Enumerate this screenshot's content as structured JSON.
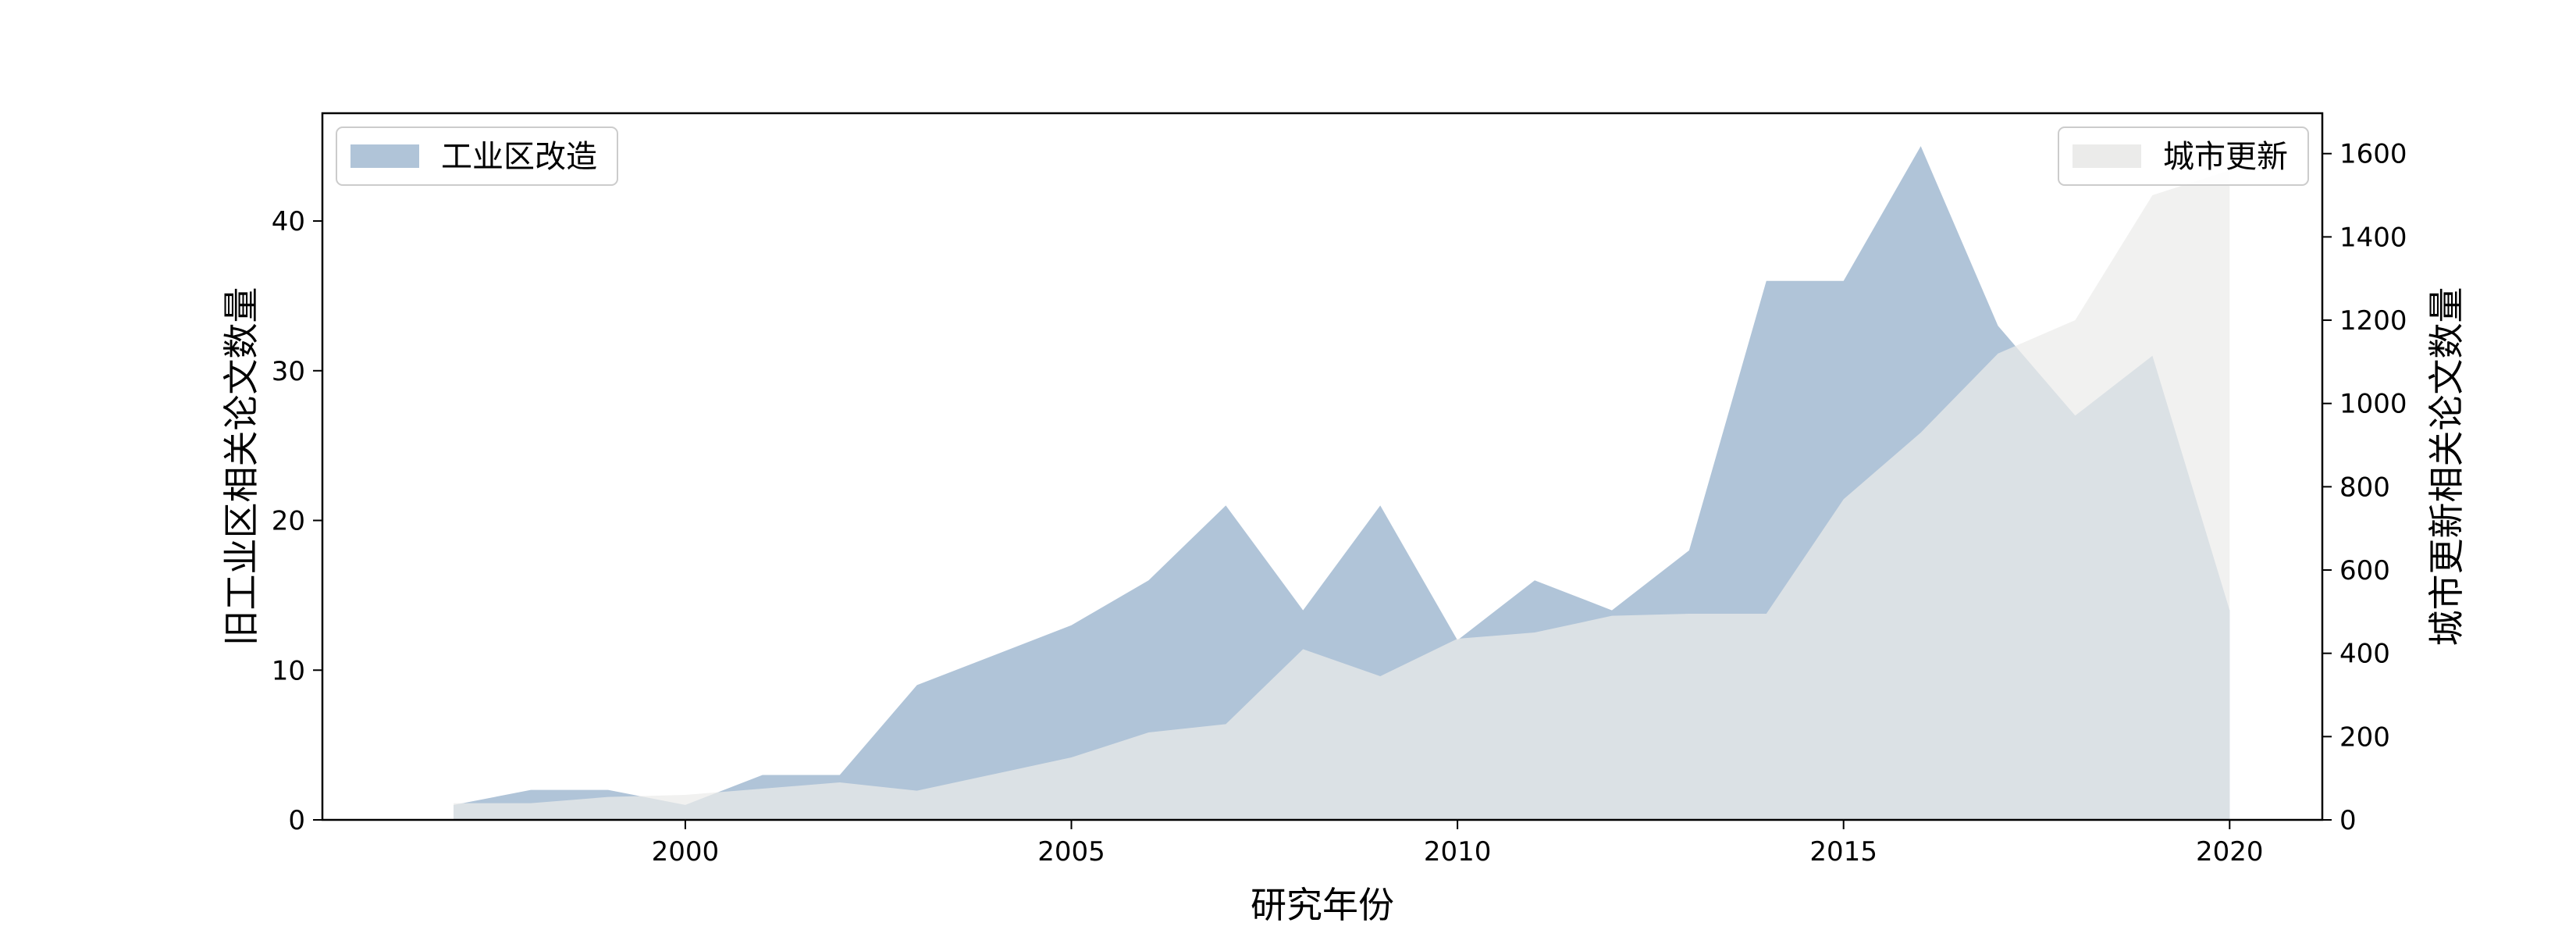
{
  "chart_data": {
    "type": "area",
    "x": [
      1997,
      1998,
      1999,
      2000,
      2001,
      2002,
      2003,
      2004,
      2005,
      2006,
      2007,
      2008,
      2009,
      2010,
      2011,
      2012,
      2013,
      2014,
      2015,
      2016,
      2017,
      2018,
      2019,
      2020
    ],
    "series": [
      {
        "name": "工业区改造",
        "axis": "left",
        "color": "#b0c4d8",
        "values": [
          1,
          2,
          2,
          1,
          3,
          3,
          9,
          11,
          13,
          16,
          21,
          14,
          21,
          12,
          16,
          14,
          18,
          36,
          36,
          45,
          33,
          27,
          31,
          14
        ]
      },
      {
        "name": "城市更新",
        "axis": "right",
        "color": "#ebebea",
        "values": [
          40,
          40,
          55,
          60,
          75,
          90,
          70,
          110,
          150,
          210,
          230,
          410,
          345,
          435,
          450,
          490,
          495,
          495,
          770,
          930,
          1120,
          1200,
          1500,
          1560
        ]
      }
    ],
    "xlabel": "研究年份",
    "ylabel_left": "旧工业区相关论文数量",
    "ylabel_right": "城市更新相关论文数量",
    "xlim": [
      1995.3,
      2021.2
    ],
    "ylim_left": [
      0,
      47.2
    ],
    "ylim_right": [
      0,
      1697
    ],
    "xticks": [
      2000,
      2005,
      2010,
      2015,
      2020
    ],
    "yticks_left": [
      0,
      10,
      20,
      30,
      40
    ],
    "yticks_right": [
      0,
      200,
      400,
      600,
      800,
      1000,
      1200,
      1400,
      1600
    ],
    "legend_left_position": "top-left",
    "legend_right_position": "top-right",
    "grid": false
  }
}
